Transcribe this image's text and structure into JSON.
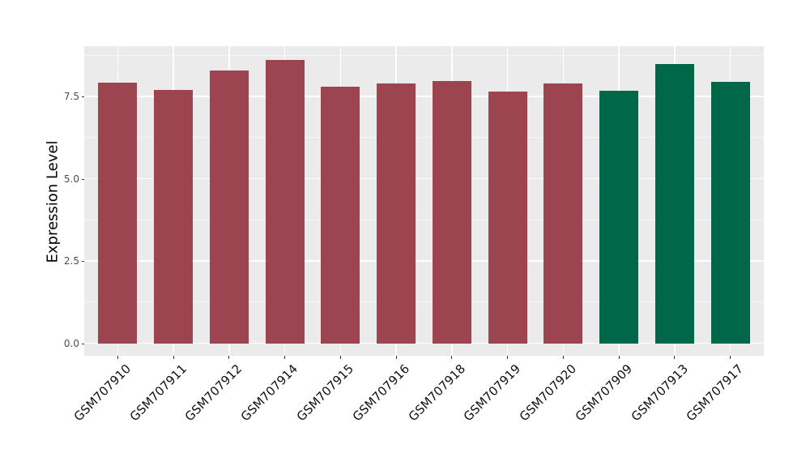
{
  "figure": {
    "background": "#FFFFFF"
  },
  "chart_data": {
    "type": "bar",
    "title": "",
    "xlabel": "",
    "ylabel": "Expression Level",
    "categories": [
      "GSM707910",
      "GSM707911",
      "GSM707912",
      "GSM707914",
      "GSM707915",
      "GSM707916",
      "GSM707918",
      "GSM707919",
      "GSM707920",
      "GSM707909",
      "GSM707913",
      "GSM707917"
    ],
    "values": [
      7.92,
      7.71,
      8.3,
      8.61,
      7.81,
      7.9,
      7.97,
      7.66,
      7.9,
      7.67,
      8.5,
      7.95
    ],
    "bar_groups": [
      "red_group",
      "red_group",
      "red_group",
      "red_group",
      "red_group",
      "red_group",
      "red_group",
      "red_group",
      "red_group",
      "green_group",
      "green_group",
      "green_group"
    ],
    "group_colors": {
      "red_group": "#9C4450",
      "green_group": "#006749"
    },
    "ylim": [
      -0.38,
      9.03
    ],
    "y_ticks": {
      "values": [
        0,
        2.5,
        5,
        7.5
      ],
      "labels": [
        "0.0",
        "2.5",
        "5.0",
        "7.5"
      ]
    },
    "y_minor_gridlines": [
      1.25,
      3.75,
      6.25,
      8.75
    ],
    "grid": true,
    "legend": "none",
    "style": {
      "panel_background": "#EBEBEB",
      "gridline_color": "#FFFFFF",
      "tick_mark_color": "#333333",
      "y_tick_label_color": "#4D4D4D",
      "x_tick_label_color": "#111111",
      "axis_title_color": "#000000",
      "x_label_rotation_deg": 45
    }
  }
}
